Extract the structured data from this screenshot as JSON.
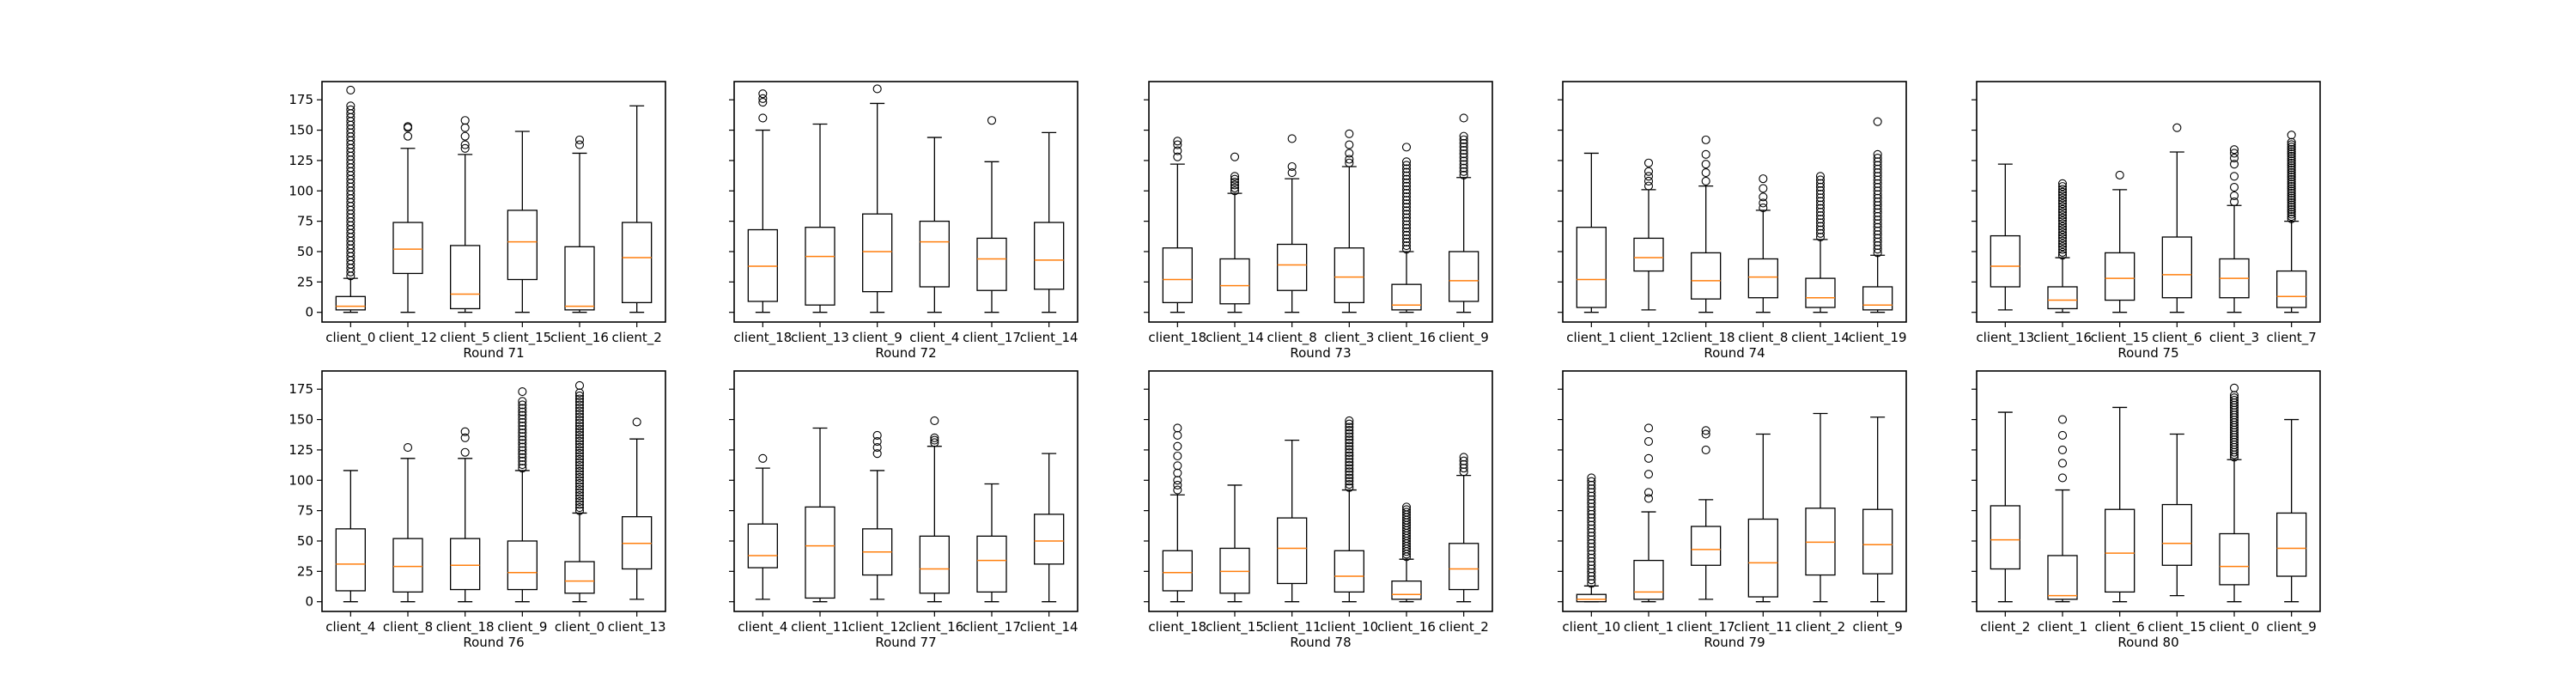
{
  "chart_data": {
    "type": "box",
    "ylim": [
      -8,
      190
    ],
    "yticks": [
      0,
      25,
      50,
      75,
      100,
      125,
      150,
      175
    ],
    "style": {
      "box_color": "#000000",
      "median_color": "#ff7f0e"
    },
    "panels": [
      {
        "xlabel": "Round 71",
        "boxes": [
          {
            "label": "client_0",
            "whislo": 0,
            "q1": 2,
            "med": 5,
            "q3": 13,
            "whishi": 28,
            "fliers": {
              "from": 30,
              "to": 170,
              "count": 45
            },
            "extra_fliers": [
              183
            ]
          },
          {
            "label": "client_12",
            "whislo": 0,
            "q1": 32,
            "med": 52,
            "q3": 74,
            "whishi": 135,
            "fliers": [
              145,
              152,
              153
            ]
          },
          {
            "label": "client_5",
            "whislo": 0,
            "q1": 3,
            "med": 15,
            "q3": 55,
            "whishi": 130,
            "fliers": [
              135,
              138,
              145,
              152,
              158
            ]
          },
          {
            "label": "client_15",
            "whislo": 0,
            "q1": 27,
            "med": 58,
            "q3": 84,
            "whishi": 149,
            "fliers": []
          },
          {
            "label": "client_16",
            "whislo": 0,
            "q1": 2,
            "med": 5,
            "q3": 54,
            "whishi": 131,
            "fliers": [
              138,
              142
            ]
          },
          {
            "label": "client_2",
            "whislo": 0,
            "q1": 8,
            "med": 45,
            "q3": 74,
            "whishi": 170,
            "fliers": []
          }
        ]
      },
      {
        "xlabel": "Round 72",
        "boxes": [
          {
            "label": "client_18",
            "whislo": 0,
            "q1": 9,
            "med": 38,
            "q3": 68,
            "whishi": 150,
            "fliers": [
              160,
              173,
              176,
              180
            ]
          },
          {
            "label": "client_13",
            "whislo": 0,
            "q1": 6,
            "med": 46,
            "q3": 70,
            "whishi": 155,
            "fliers": []
          },
          {
            "label": "client_9",
            "whislo": 0,
            "q1": 17,
            "med": 50,
            "q3": 81,
            "whishi": 172,
            "fliers": [
              184
            ]
          },
          {
            "label": "client_4",
            "whislo": 0,
            "q1": 21,
            "med": 58,
            "q3": 75,
            "whishi": 144,
            "fliers": []
          },
          {
            "label": "client_17",
            "whislo": 0,
            "q1": 18,
            "med": 44,
            "q3": 61,
            "whishi": 124,
            "fliers": [
              158
            ]
          },
          {
            "label": "client_14",
            "whislo": 0,
            "q1": 19,
            "med": 43,
            "q3": 74,
            "whishi": 148,
            "fliers": []
          }
        ]
      },
      {
        "xlabel": "Round 73",
        "boxes": [
          {
            "label": "client_18",
            "whislo": 0,
            "q1": 8,
            "med": 27,
            "q3": 53,
            "whishi": 122,
            "fliers": [
              128,
              133,
              138,
              141
            ]
          },
          {
            "label": "client_14",
            "whislo": 0,
            "q1": 7,
            "med": 22,
            "q3": 44,
            "whishi": 98,
            "fliers": {
              "from": 100,
              "to": 112,
              "count": 6
            },
            "extra_fliers": [
              128
            ]
          },
          {
            "label": "client_8",
            "whislo": 0,
            "q1": 18,
            "med": 39,
            "q3": 56,
            "whishi": 110,
            "fliers": [
              115,
              120,
              143
            ]
          },
          {
            "label": "client_3",
            "whislo": 0,
            "q1": 8,
            "med": 29,
            "q3": 53,
            "whishi": 120,
            "fliers": [
              123,
              126,
              131,
              138,
              147
            ]
          },
          {
            "label": "client_16",
            "whislo": 0,
            "q1": 2,
            "med": 6,
            "q3": 23,
            "whishi": 50,
            "fliers": {
              "from": 52,
              "to": 124,
              "count": 26
            },
            "extra_fliers": [
              136
            ]
          },
          {
            "label": "client_9",
            "whislo": 0,
            "q1": 9,
            "med": 26,
            "q3": 50,
            "whishi": 111,
            "fliers": {
              "from": 113,
              "to": 145,
              "count": 12
            },
            "extra_fliers": [
              160
            ]
          }
        ]
      },
      {
        "xlabel": "Round 74",
        "boxes": [
          {
            "label": "client_1",
            "whislo": 0,
            "q1": 4,
            "med": 27,
            "q3": 70,
            "whishi": 131,
            "fliers": []
          },
          {
            "label": "client_12",
            "whislo": 2,
            "q1": 34,
            "med": 45,
            "q3": 61,
            "whishi": 101,
            "fliers": [
              104,
              108,
              112,
              116,
              123
            ]
          },
          {
            "label": "client_18",
            "whislo": 0,
            "q1": 11,
            "med": 26,
            "q3": 49,
            "whishi": 104,
            "fliers": [
              108,
              115,
              122,
              130,
              142
            ]
          },
          {
            "label": "client_8",
            "whislo": 0,
            "q1": 12,
            "med": 29,
            "q3": 44,
            "whishi": 84,
            "fliers": [
              86,
              90,
              95,
              102,
              110
            ]
          },
          {
            "label": "client_14",
            "whislo": 0,
            "q1": 4,
            "med": 12,
            "q3": 28,
            "whishi": 60,
            "fliers": {
              "from": 62,
              "to": 112,
              "count": 18
            }
          },
          {
            "label": "client_19",
            "whislo": 0,
            "q1": 2,
            "med": 6,
            "q3": 21,
            "whishi": 47,
            "fliers": {
              "from": 49,
              "to": 130,
              "count": 28
            },
            "extra_fliers": [
              157
            ]
          }
        ]
      },
      {
        "xlabel": "Round 75",
        "boxes": [
          {
            "label": "client_13",
            "whislo": 2,
            "q1": 21,
            "med": 38,
            "q3": 63,
            "whishi": 122,
            "fliers": []
          },
          {
            "label": "client_16",
            "whislo": 0,
            "q1": 3,
            "med": 10,
            "q3": 21,
            "whishi": 45,
            "fliers": {
              "from": 47,
              "to": 106,
              "count": 26
            }
          },
          {
            "label": "client_15",
            "whislo": 0,
            "q1": 10,
            "med": 28,
            "q3": 49,
            "whishi": 101,
            "fliers": [
              113
            ]
          },
          {
            "label": "client_6",
            "whislo": 0,
            "q1": 12,
            "med": 31,
            "q3": 62,
            "whishi": 132,
            "fliers": [
              152
            ]
          },
          {
            "label": "client_3",
            "whislo": 0,
            "q1": 12,
            "med": 28,
            "q3": 44,
            "whishi": 88,
            "fliers": [
              91,
              96,
              103,
              112,
              122,
              127,
              131,
              134
            ]
          },
          {
            "label": "client_7",
            "whislo": 0,
            "q1": 4,
            "med": 13,
            "q3": 34,
            "whishi": 75,
            "fliers": {
              "from": 77,
              "to": 140,
              "count": 34
            },
            "extra_fliers": [
              146
            ]
          }
        ]
      },
      {
        "xlabel": "Round 76",
        "boxes": [
          {
            "label": "client_4",
            "whislo": 0,
            "q1": 9,
            "med": 31,
            "q3": 60,
            "whishi": 108,
            "fliers": []
          },
          {
            "label": "client_8",
            "whislo": 0,
            "q1": 8,
            "med": 29,
            "q3": 52,
            "whishi": 118,
            "fliers": [
              127
            ]
          },
          {
            "label": "client_18",
            "whislo": 0,
            "q1": 10,
            "med": 30,
            "q3": 52,
            "whishi": 118,
            "fliers": [
              123,
              135,
              140
            ]
          },
          {
            "label": "client_9",
            "whislo": 0,
            "q1": 10,
            "med": 24,
            "q3": 50,
            "whishi": 108,
            "fliers": {
              "from": 110,
              "to": 165,
              "count": 20
            },
            "extra_fliers": [
              173
            ]
          },
          {
            "label": "client_0",
            "whislo": 0,
            "q1": 7,
            "med": 17,
            "q3": 33,
            "whishi": 73,
            "fliers": {
              "from": 75,
              "to": 172,
              "count": 40
            },
            "extra_fliers": [
              178
            ]
          },
          {
            "label": "client_13",
            "whislo": 2,
            "q1": 27,
            "med": 48,
            "q3": 70,
            "whishi": 134,
            "fliers": [
              148
            ]
          }
        ]
      },
      {
        "xlabel": "Round 77",
        "boxes": [
          {
            "label": "client_4",
            "whislo": 2,
            "q1": 28,
            "med": 38,
            "q3": 64,
            "whishi": 110,
            "fliers": [
              118
            ]
          },
          {
            "label": "client_11",
            "whislo": 0,
            "q1": 3,
            "med": 46,
            "q3": 78,
            "whishi": 143,
            "fliers": []
          },
          {
            "label": "client_12",
            "whislo": 2,
            "q1": 22,
            "med": 41,
            "q3": 60,
            "whishi": 108,
            "fliers": [
              122,
              127,
              132,
              137
            ]
          },
          {
            "label": "client_16",
            "whislo": 0,
            "q1": 7,
            "med": 27,
            "q3": 54,
            "whishi": 128,
            "fliers": [
              131,
              133,
              135,
              149
            ]
          },
          {
            "label": "client_17",
            "whislo": 0,
            "q1": 8,
            "med": 34,
            "q3": 54,
            "whishi": 97,
            "fliers": []
          },
          {
            "label": "client_14",
            "whislo": 0,
            "q1": 31,
            "med": 50,
            "q3": 72,
            "whishi": 122,
            "fliers": []
          }
        ]
      },
      {
        "xlabel": "Round 78",
        "boxes": [
          {
            "label": "client_18",
            "whislo": 0,
            "q1": 9,
            "med": 24,
            "q3": 42,
            "whishi": 88,
            "fliers": [
              92,
              96,
              100,
              106,
              112,
              120,
              128,
              137,
              143
            ]
          },
          {
            "label": "client_15",
            "whislo": 0,
            "q1": 7,
            "med": 25,
            "q3": 44,
            "whishi": 96,
            "fliers": []
          },
          {
            "label": "client_11",
            "whislo": 0,
            "q1": 15,
            "med": 44,
            "q3": 69,
            "whishi": 133,
            "fliers": []
          },
          {
            "label": "client_10",
            "whislo": 0,
            "q1": 8,
            "med": 21,
            "q3": 42,
            "whishi": 92,
            "fliers": {
              "from": 94,
              "to": 149,
              "count": 22
            }
          },
          {
            "label": "client_16",
            "whislo": 0,
            "q1": 2,
            "med": 6,
            "q3": 17,
            "whishi": 35,
            "fliers": {
              "from": 37,
              "to": 78,
              "count": 20
            }
          },
          {
            "label": "client_2",
            "whislo": 0,
            "q1": 10,
            "med": 27,
            "q3": 48,
            "whishi": 104,
            "fliers": [
              107,
              110,
              113,
              116,
              119
            ]
          }
        ]
      },
      {
        "xlabel": "Round 79",
        "boxes": [
          {
            "label": "client_10",
            "whislo": 0,
            "q1": 0,
            "med": 2,
            "q3": 6,
            "whishi": 13,
            "fliers": {
              "from": 15,
              "to": 102,
              "count": 30
            }
          },
          {
            "label": "client_1",
            "whislo": 0,
            "q1": 2,
            "med": 8,
            "q3": 34,
            "whishi": 74,
            "fliers": [
              85,
              90,
              105,
              118,
              132,
              143
            ]
          },
          {
            "label": "client_17",
            "whislo": 2,
            "q1": 30,
            "med": 43,
            "q3": 62,
            "whishi": 84,
            "fliers": [
              125,
              138,
              141
            ]
          },
          {
            "label": "client_11",
            "whislo": 0,
            "q1": 4,
            "med": 32,
            "q3": 68,
            "whishi": 138,
            "fliers": []
          },
          {
            "label": "client_2",
            "whislo": 0,
            "q1": 22,
            "med": 49,
            "q3": 77,
            "whishi": 155,
            "fliers": []
          },
          {
            "label": "client_9",
            "whislo": 0,
            "q1": 23,
            "med": 47,
            "q3": 76,
            "whishi": 152,
            "fliers": []
          }
        ]
      },
      {
        "xlabel": "Round 80",
        "boxes": [
          {
            "label": "client_2",
            "whislo": 0,
            "q1": 27,
            "med": 51,
            "q3": 79,
            "whishi": 156,
            "fliers": []
          },
          {
            "label": "client_1",
            "whislo": 0,
            "q1": 2,
            "med": 5,
            "q3": 38,
            "whishi": 92,
            "fliers": [
              102,
              114,
              125,
              137,
              150
            ]
          },
          {
            "label": "client_6",
            "whislo": 0,
            "q1": 8,
            "med": 40,
            "q3": 76,
            "whishi": 160,
            "fliers": []
          },
          {
            "label": "client_15",
            "whislo": 5,
            "q1": 30,
            "med": 48,
            "q3": 80,
            "whishi": 138,
            "fliers": []
          },
          {
            "label": "client_0",
            "whislo": 0,
            "q1": 14,
            "med": 29,
            "q3": 56,
            "whishi": 117,
            "fliers": {
              "from": 119,
              "to": 170,
              "count": 26
            },
            "extra_fliers": [
              176
            ]
          },
          {
            "label": "client_9",
            "whislo": 0,
            "q1": 21,
            "med": 44,
            "q3": 73,
            "whishi": 150,
            "fliers": []
          }
        ]
      }
    ]
  }
}
